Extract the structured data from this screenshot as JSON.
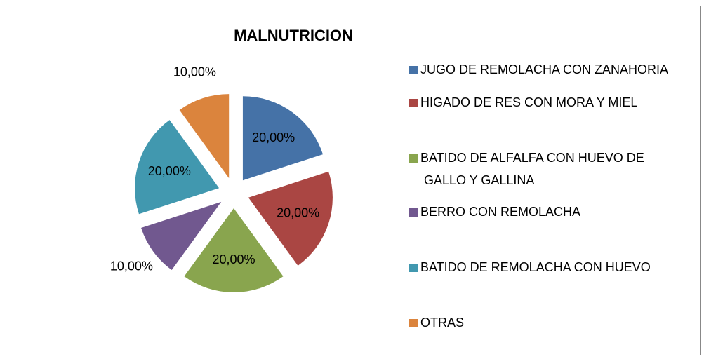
{
  "chart_data": {
    "type": "pie",
    "title": "MALNUTRICION",
    "categories": [
      "JUGO DE REMOLACHA CON ZANAHORIA",
      "HIGADO DE RES CON MORA Y MIEL",
      "BATIDO DE ALFALFA CON HUEVO DE GALLO Y GALLINA",
      "BERRO CON REMOLACHA",
      "BATIDO DE REMOLACHA CON HUEVO",
      "OTRAS"
    ],
    "values": [
      20,
      20,
      20,
      10,
      20,
      10
    ],
    "value_labels": [
      "20,00%",
      "20,00%",
      "20,00%",
      "10,00%",
      "20,00%",
      "10,00%"
    ],
    "colors": [
      "#4572a7",
      "#aa4643",
      "#89a54e",
      "#71588f",
      "#4198af",
      "#db843d"
    ],
    "legend": "right"
  }
}
